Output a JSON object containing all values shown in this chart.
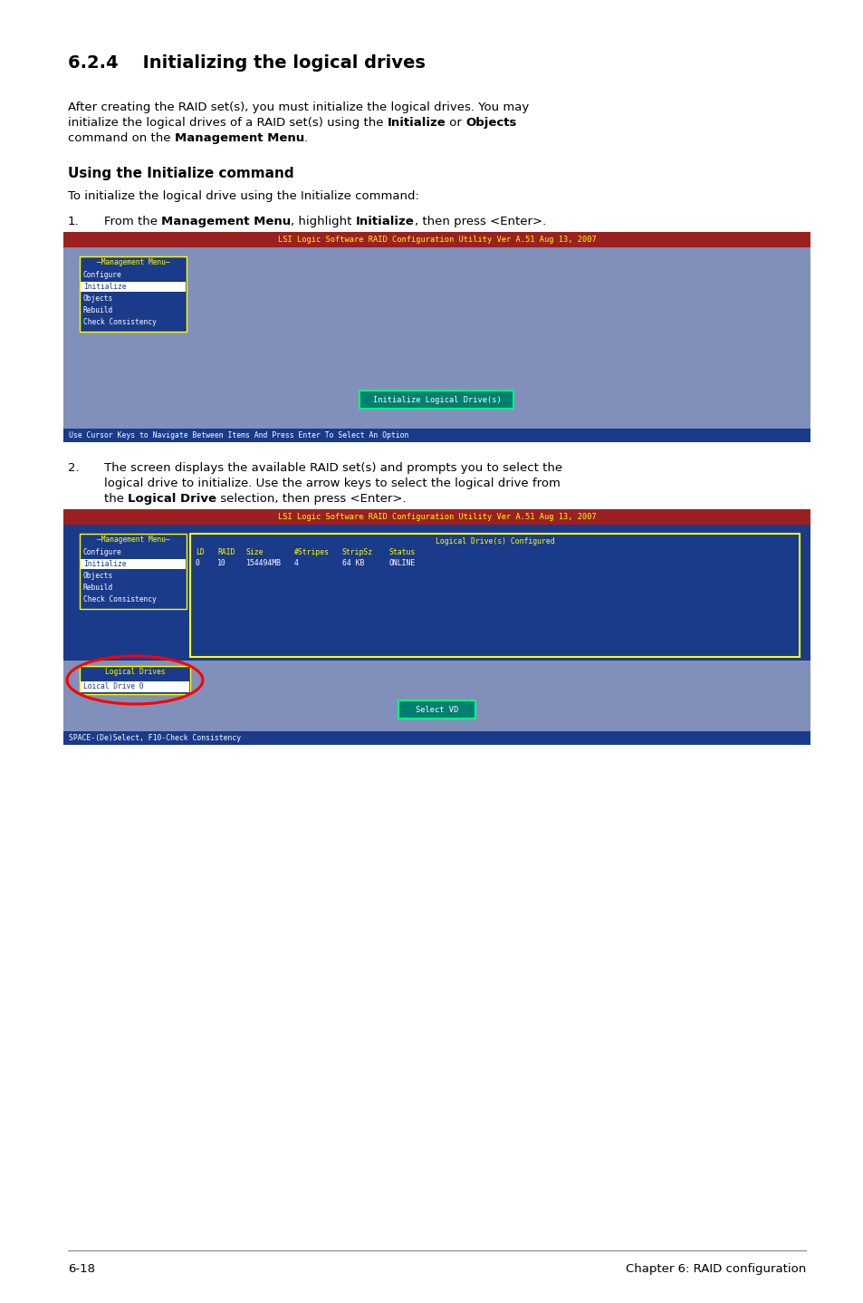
{
  "title": "6.2.4    Initializing the logical drives",
  "subheading": "Using the Initialize command",
  "subpara": "To initialize the logical drive using the Initialize command:",
  "step1_num": "1.",
  "step2_num": "2.",
  "step2_line1": "The screen displays the available RAID set(s) and prompts you to select the",
  "step2_line2": "logical drive to initialize. Use the arrow keys to select the logical drive from",
  "step2_line3_pre": "the ",
  "step2_line3_bold": "Logical Drive",
  "step2_line3_post": " selection, then press <Enter>.",
  "screen1_header": "LSI Logic Software RAID Configuration Utility Ver A.51 Aug 13, 2007",
  "screen1_bg": "#8090bb",
  "screen1_header_bg": "#9b2020",
  "screen1_header_color": "#ffff00",
  "screen1_menu_title": "Management Menu",
  "screen1_menu_items": [
    "Configure",
    "Initialize",
    "Objects",
    "Rebuild",
    "Check Consistency"
  ],
  "screen1_menu_bg": "#1a3a8a",
  "screen1_menu_border": "#ffff00",
  "screen1_selected_item": "Initialize",
  "screen1_selected_bg": "#ffffff",
  "screen1_selected_color": "#1a3a8a",
  "screen1_menu_color": "#ffffff",
  "screen1_prompt_text": "Initialize Logical Drive(s)",
  "screen1_prompt_bg": "#008070",
  "screen1_prompt_color": "#ffffff",
  "screen1_prompt_border": "#00ff80",
  "screen1_footer": "Use Cursor Keys to Navigate Between Items And Press Enter To Select An Option",
  "screen1_footer_bg": "#1a3a8a",
  "screen1_footer_color": "#ffffff",
  "screen2_header": "LSI Logic Software RAID Configuration Utility Ver A.51 Aug 13, 2007",
  "screen2_header_bg": "#9b2020",
  "screen2_header_color": "#ffff00",
  "screen2_dark_bg": "#1a3a8a",
  "screen2_light_bg": "#8090bb",
  "screen2_menu_title": "Management Menu",
  "screen2_menu_items": [
    "Configure",
    "Initialize",
    "Objects",
    "Rebuild",
    "Check Consistency"
  ],
  "screen2_menu_bg": "#1a3a8a",
  "screen2_menu_border": "#ffff00",
  "screen2_selected_item": "Initialize",
  "screen2_table_title": "Logical Drive(s) Configured",
  "screen2_table_border": "#ffff00",
  "screen2_table_bg": "#1a3a8a",
  "screen2_table_header_color": "#ffff00",
  "screen2_table_data_color": "#ffffff",
  "screen2_table_cols": [
    "LD",
    "RAID",
    "Size",
    "#Stripes",
    "StripSz",
    "Status"
  ],
  "screen2_table_row": [
    "0",
    "10",
    "154494MB",
    "4",
    "64 KB",
    "ONLINE"
  ],
  "screen2_logical_drives_title": "Logical Drives",
  "screen2_logical_drives_item": "Loical Drive 0",
  "screen2_logical_title_color": "#ffff00",
  "screen2_prompt_text": "Select VD",
  "screen2_prompt_bg": "#008070",
  "screen2_prompt_color": "#ffffff",
  "screen2_footer": "SPACE-(De)Select, F10-Check Consistency",
  "screen2_footer_bg": "#1a3a8a",
  "screen2_footer_color": "#ffffff",
  "footer_left": "6-18",
  "footer_right": "Chapter 6: RAID configuration",
  "bg_color": "#ffffff",
  "text_color": "#000000",
  "ml": 75,
  "mr": 890,
  "font_size_title": 14,
  "font_size_text": 9.5,
  "font_size_subheading": 11,
  "font_size_screen": 6.2,
  "para1_line1": "After creating the RAID set(s), you must initialize the logical drives. You may",
  "para1_line2_pre": "initialize the logical drives of a RAID set(s) using the ",
  "para1_line2_b1": "Initialize",
  "para1_line2_mid": " or ",
  "para1_line2_b2": "Objects",
  "para1_line3_pre": "command on the ",
  "para1_line3_bold": "Management Menu",
  "para1_line3_post": ".",
  "step1_line1_pre": "From the ",
  "step1_line1_b1": "Management Menu",
  "step1_line1_mid": ", highlight ",
  "step1_line1_b2": "Initialize",
  "step1_line1_post": ", then press <Enter>."
}
